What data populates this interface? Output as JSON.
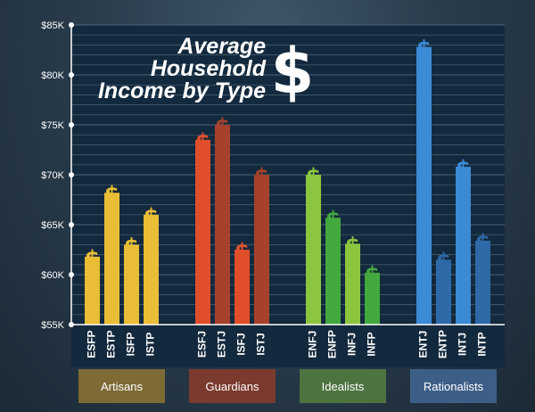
{
  "chart_data": {
    "type": "bar",
    "title": [
      "Average",
      "Household",
      "Income by Type"
    ],
    "title_symbol": "$",
    "ylim": [
      55000,
      85000
    ],
    "y_ticks": [
      {
        "value": 55000,
        "label": "$55K"
      },
      {
        "value": 60000,
        "label": "$60K"
      },
      {
        "value": 65000,
        "label": "$65K"
      },
      {
        "value": 70000,
        "label": "$70K"
      },
      {
        "value": 75000,
        "label": "$75K"
      },
      {
        "value": 80000,
        "label": "$80K"
      },
      {
        "value": 85000,
        "label": "$85K"
      }
    ],
    "grid": true,
    "bar_marker": "$",
    "groups": [
      {
        "name": "Artisans",
        "color": "#e9bd35",
        "box_color": "#7d6a35",
        "bars": [
          {
            "label": "ESFP",
            "value": 61800
          },
          {
            "label": "ESTP",
            "value": 68200
          },
          {
            "label": "ISFP",
            "value": 63000
          },
          {
            "label": "ISTP",
            "value": 66000
          }
        ]
      },
      {
        "name": "Guardians",
        "color": "#c0432e",
        "box_color": "#7b3a2e",
        "bars": [
          {
            "label": "ESFJ",
            "value": 73500,
            "color": "#e04e2a"
          },
          {
            "label": "ESTJ",
            "value": 75000,
            "color": "#a8412c"
          },
          {
            "label": "ISFJ",
            "value": 62500,
            "color": "#e04e2a"
          },
          {
            "label": "ISTJ",
            "value": 70000,
            "color": "#a8412c"
          }
        ]
      },
      {
        "name": "Idealists",
        "color": "#5cb43c",
        "box_color": "#4d7340",
        "bars": [
          {
            "label": "ENFJ",
            "value": 70000,
            "color": "#8cc63f"
          },
          {
            "label": "ENFP",
            "value": 65700,
            "color": "#43a83d"
          },
          {
            "label": "INFJ",
            "value": 63100,
            "color": "#8cc63f"
          },
          {
            "label": "INFP",
            "value": 60200,
            "color": "#43a83d"
          }
        ]
      },
      {
        "name": "Rationalists",
        "color": "#3a8ad6",
        "box_color": "#3d5f87",
        "bars": [
          {
            "label": "ENTJ",
            "value": 82800,
            "color": "#3a8ad6"
          },
          {
            "label": "ENTP",
            "value": 61500,
            "color": "#2e69a8"
          },
          {
            "label": "INTJ",
            "value": 70800,
            "color": "#3a8ad6"
          },
          {
            "label": "INTP",
            "value": 63400,
            "color": "#2e69a8"
          }
        ]
      }
    ]
  }
}
